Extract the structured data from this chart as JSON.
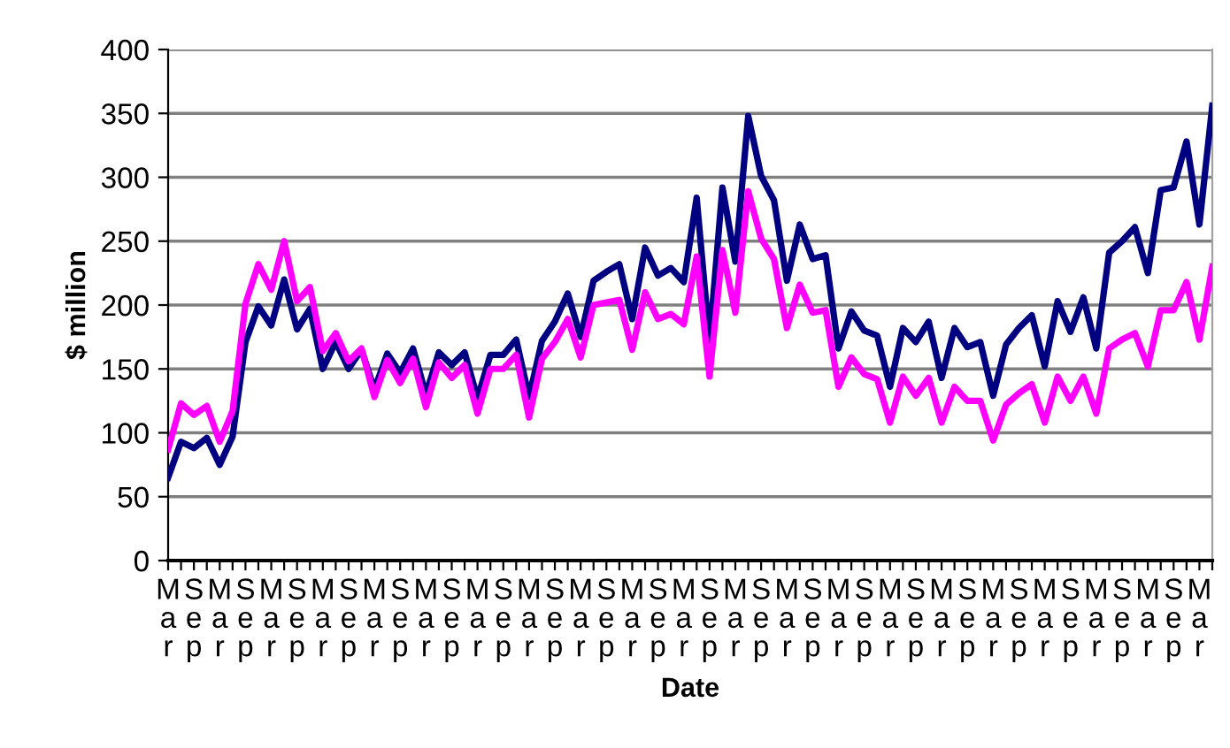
{
  "chart_data": {
    "type": "line",
    "xlabel": "Date",
    "ylabel": "$ million",
    "categories": [
      "Mar",
      null,
      "Sep",
      null,
      "Mar",
      null,
      "Sep",
      null,
      "Mar",
      null,
      "Sep",
      null,
      "Mar",
      null,
      "Sep",
      null,
      "Mar",
      null,
      "Sep",
      null,
      "Mar",
      null,
      "Sep",
      null,
      "Mar",
      null,
      "Sep",
      null,
      "Mar",
      null,
      "Sep",
      null,
      "Mar",
      null,
      "Sep",
      null,
      "Mar",
      null,
      "Sep",
      null,
      "Mar",
      null,
      "Sep",
      null,
      "Mar",
      null,
      "Sep",
      null,
      "Mar",
      null,
      "Sep",
      null,
      "Mar",
      null,
      "Sep",
      null,
      "Mar",
      null,
      "Sep",
      null,
      "Mar",
      null,
      "Sep",
      null,
      "Mar",
      null,
      "Sep",
      null,
      "Mar",
      null,
      "Sep",
      null,
      "Mar",
      null,
      "Sep",
      null,
      "Mar",
      null,
      "Sep",
      null,
      "Mar",
      null
    ],
    "series": [
      {
        "color": "#000080",
        "values": [
          65,
          93,
          88,
          96,
          75,
          97,
          171,
          199,
          184,
          220,
          181,
          197,
          150,
          171,
          150,
          165,
          134,
          162,
          147,
          166,
          130,
          163,
          153,
          163,
          127,
          161,
          161,
          173,
          128,
          172,
          187,
          209,
          175,
          219,
          226,
          232,
          189,
          245,
          223,
          229,
          218,
          284,
          172,
          292,
          234,
          348,
          301,
          282,
          219,
          263,
          236,
          239,
          166,
          195,
          180,
          176,
          136,
          182,
          171,
          187,
          143,
          182,
          167,
          171,
          129,
          169,
          182,
          192,
          152,
          203,
          179,
          206,
          166,
          241,
          250,
          261,
          225,
          290,
          292,
          328,
          263,
          356
        ]
      },
      {
        "color": "#ff00ff",
        "values": [
          87,
          123,
          114,
          121,
          93,
          117,
          201,
          232,
          212,
          250,
          203,
          214,
          164,
          178,
          156,
          166,
          128,
          157,
          139,
          158,
          120,
          155,
          143,
          153,
          115,
          150,
          150,
          161,
          112,
          158,
          171,
          189,
          159,
          200,
          202,
          204,
          165,
          210,
          189,
          193,
          185,
          238,
          144,
          243,
          194,
          289,
          252,
          236,
          182,
          216,
          194,
          196,
          136,
          159,
          146,
          142,
          108,
          144,
          129,
          143,
          108,
          136,
          125,
          125,
          94,
          122,
          131,
          138,
          108,
          144,
          125,
          144,
          115,
          166,
          173,
          178,
          152,
          196,
          196,
          218,
          173,
          230
        ]
      }
    ],
    "ylim": [
      0,
      400
    ],
    "yticks": [
      0,
      50,
      100,
      150,
      200,
      250,
      300,
      350,
      400
    ],
    "grid": "y",
    "marker": "none",
    "line_style": "solid"
  }
}
